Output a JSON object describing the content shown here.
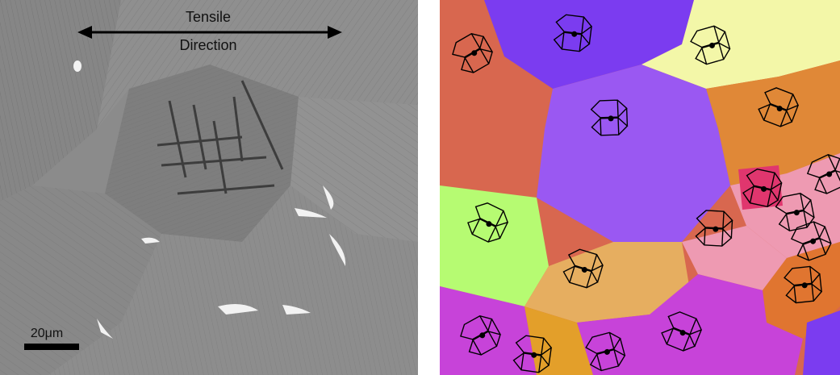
{
  "sem_panel": {
    "annotation_line1": "Tensile",
    "annotation_line2": "Direction",
    "scale_bar_label": "20μm",
    "colors": {
      "background": "#8a8a8a",
      "text": "#111111",
      "scale_bar": "#000000"
    }
  },
  "ebsd_panel": {
    "grain_colors": [
      "#d8674f",
      "#7b3cf0",
      "#f3f7a8",
      "#e08837",
      "#9a58f2",
      "#b6fb72",
      "#ee9ab2",
      "#e0366e",
      "#e6ae60",
      "#c743d9",
      "#e39f2a",
      "#e07530"
    ],
    "unit_cell_icon": "hexagonal-prism-icon",
    "unit_cell_count": 17
  }
}
